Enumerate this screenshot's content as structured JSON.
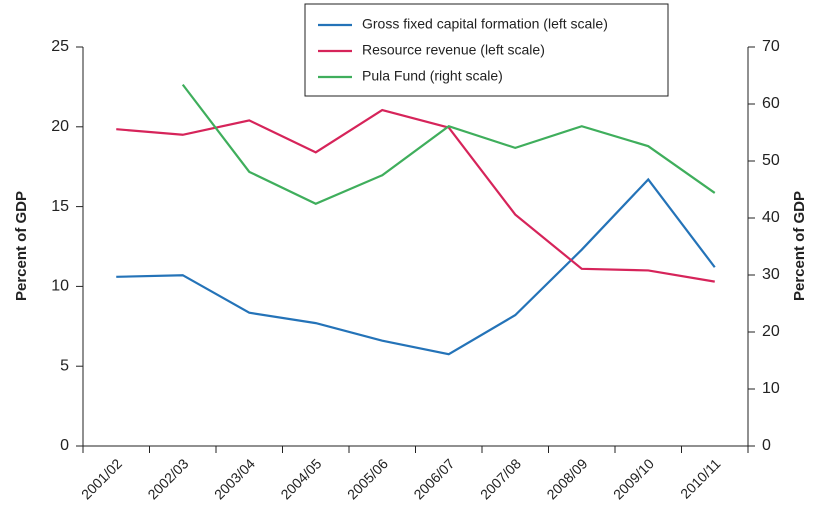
{
  "chart_data": {
    "type": "line",
    "y_label": "Percent of GDP",
    "y2_label": "Percent of GDP",
    "categories": [
      "2001/02",
      "2002/03",
      "2003/04",
      "2004/05",
      "2005/06",
      "2006/07",
      "2007/08",
      "2008/09",
      "2009/10",
      "2010/11"
    ],
    "series": [
      {
        "name": "Gross fixed capital formation (left scale)",
        "color": "#2473b8",
        "values": [
          10.6,
          10.7,
          8.35,
          7.7,
          6.6,
          5.75,
          8.2,
          12.3,
          16.7,
          11.2
        ]
      },
      {
        "name": "Resource revenue (left scale)",
        "color": "#d6245a",
        "values": [
          19.85,
          19.5,
          20.4,
          18.4,
          21.05,
          19.95,
          14.5,
          11.1,
          11.0,
          10.3
        ]
      },
      {
        "name": "Pula Fund (right scale)",
        "color": "#3fae5c",
        "axis": "y2",
        "values": [
          null,
          63.4,
          48.1,
          42.5,
          47.5,
          56.1,
          52.3,
          56.1,
          52.6,
          44.4
        ]
      }
    ],
    "ylim": [
      0,
      25
    ],
    "yticks": [
      0,
      5,
      10,
      15,
      20,
      25
    ],
    "y2lim": [
      0,
      70
    ],
    "y2ticks": [
      0,
      10,
      20,
      30,
      40,
      50,
      60,
      70
    ],
    "grid": false,
    "legend": "top"
  }
}
